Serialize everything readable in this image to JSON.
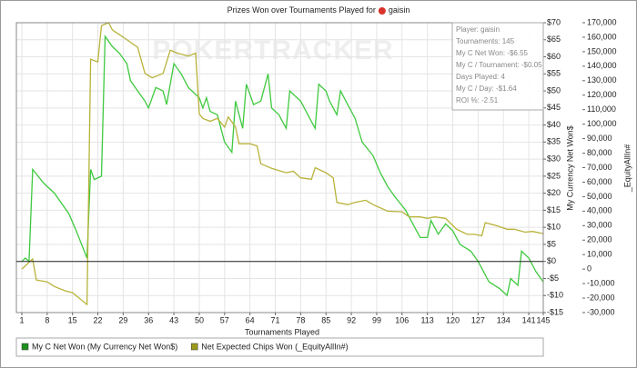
{
  "chart_data": {
    "type": "line",
    "title": "Prizes Won over Tournaments Played for",
    "title_player": "gaisin",
    "watermark": "POKERTRACKER",
    "x_label": "Tournaments Played",
    "y_label": "My Currency Net Won$",
    "y2_label": "_EquityAllIn#",
    "xlim": [
      -0.5,
      145
    ],
    "xticks": [
      1,
      8,
      15,
      22,
      29,
      36,
      43,
      50,
      57,
      64,
      71,
      78,
      85,
      92,
      99,
      106,
      113,
      120,
      127,
      134,
      141,
      145
    ],
    "ylim": [
      -15,
      70
    ],
    "yticks": [
      {
        "value": -15,
        "label": "-$15"
      },
      {
        "value": -10,
        "label": "-$10"
      },
      {
        "value": -5,
        "label": "-$5"
      },
      {
        "value": 0,
        "label": "$0"
      },
      {
        "value": 5,
        "label": "$5"
      },
      {
        "value": 10,
        "label": "$10"
      },
      {
        "value": 15,
        "label": "$15"
      },
      {
        "value": 20,
        "label": "$20"
      },
      {
        "value": 25,
        "label": "$25"
      },
      {
        "value": 30,
        "label": "$30"
      },
      {
        "value": 35,
        "label": "$35"
      },
      {
        "value": 40,
        "label": "$40"
      },
      {
        "value": 45,
        "label": "$45"
      },
      {
        "value": 50,
        "label": "$50"
      },
      {
        "value": 55,
        "label": "$55"
      },
      {
        "value": 60,
        "label": "$60"
      },
      {
        "value": 65,
        "label": "$65"
      },
      {
        "value": 70,
        "label": "$70"
      }
    ],
    "y2lim": [
      -30000,
      170000
    ],
    "y2ticks": [
      {
        "value": -30000,
        "label": "-30,000"
      },
      {
        "value": -20000,
        "label": "-20,000"
      },
      {
        "value": -10000,
        "label": "-10,000"
      },
      0,
      {
        "value": 10000,
        "label": "10,000"
      },
      {
        "value": 20000,
        "label": "20,000"
      },
      {
        "value": 30000,
        "label": "30,000"
      },
      {
        "value": 40000,
        "label": "40,000"
      },
      {
        "value": 50000,
        "label": "50,000"
      },
      {
        "value": 60000,
        "label": "60,000"
      },
      {
        "value": 70000,
        "label": "70,000"
      },
      {
        "value": 80000,
        "label": "80,000"
      },
      {
        "value": 90000,
        "label": "90,000"
      },
      {
        "value": 100000,
        "label": "100,000"
      },
      {
        "value": 110000,
        "label": "110,000"
      },
      {
        "value": 120000,
        "label": "120,000"
      },
      {
        "value": 130000,
        "label": "130,000"
      },
      {
        "value": 140000,
        "label": "140,000"
      },
      {
        "value": 150000,
        "label": "150,000"
      },
      {
        "value": 160000,
        "label": "160,000"
      },
      {
        "value": 170000,
        "label": "170,000"
      }
    ],
    "grid": true,
    "series": [
      {
        "name": "My C Net Won (My Currency Net Won$)",
        "color": "#3fc93f",
        "legend_color": "#1f8f1f",
        "axis": "y",
        "x": [
          1,
          2,
          3,
          4,
          7,
          10,
          14,
          16,
          19,
          20,
          21,
          23,
          24,
          26,
          28,
          30,
          31,
          33,
          35,
          36,
          38,
          40,
          41,
          43,
          45,
          47,
          50,
          51,
          52,
          53,
          55,
          56,
          57,
          59,
          60,
          62,
          63,
          65,
          67,
          69,
          70,
          72,
          74,
          75,
          78,
          80,
          82,
          83,
          85,
          86,
          88,
          89,
          91,
          93,
          95,
          98,
          100,
          102,
          104,
          107,
          109,
          111,
          113,
          114,
          116,
          118,
          120,
          122,
          125,
          127,
          128,
          130,
          133,
          135,
          136,
          138,
          139,
          141,
          143,
          145
        ],
        "values": [
          0,
          1,
          0,
          27,
          23,
          20,
          14,
          9,
          1,
          27,
          24,
          25,
          66,
          63,
          61,
          58,
          53,
          50,
          47,
          45,
          51,
          50,
          46,
          58,
          55,
          51,
          48,
          45,
          48,
          44,
          43,
          39,
          35,
          32,
          47,
          39,
          52,
          46,
          47,
          55,
          45,
          43,
          39,
          50,
          47,
          43,
          39,
          52,
          50,
          47,
          43,
          50,
          46,
          42,
          35,
          31,
          26,
          22,
          19,
          15,
          11,
          7,
          7,
          12,
          8,
          11,
          9,
          5,
          3,
          0,
          -2,
          -6,
          -8,
          -10,
          -5,
          -7,
          3,
          1,
          -3,
          -6
        ]
      },
      {
        "name": "Net Expected Chips Won (_EquityAllIn#)",
        "color": "#b8b23a",
        "legend_color": "#9c9a1c",
        "axis": "y2",
        "x": [
          1,
          4,
          5,
          8,
          10,
          13,
          15,
          19,
          20,
          22,
          23,
          25,
          26,
          29,
          33,
          35,
          37,
          40,
          42,
          44,
          47,
          49,
          50,
          51,
          53,
          55,
          57,
          58,
          60,
          61,
          64,
          66,
          67,
          70,
          74,
          76,
          78,
          81,
          82,
          85,
          87,
          88,
          91,
          93,
          96,
          98,
          102,
          106,
          108,
          111,
          113,
          115,
          118,
          121,
          124,
          126,
          128,
          129,
          132,
          135,
          137,
          140,
          142,
          145
        ],
        "values": [
          0,
          7000,
          -7500,
          -8800,
          -12000,
          -15000,
          -16300,
          -24500,
          144800,
          143000,
          168000,
          170000,
          165000,
          160000,
          153000,
          135000,
          132000,
          135000,
          151000,
          149000,
          147000,
          149000,
          107000,
          104000,
          102000,
          104000,
          98000,
          105000,
          98000,
          86500,
          86500,
          85000,
          72700,
          69500,
          66500,
          67500,
          63000,
          62000,
          70000,
          66500,
          63000,
          46000,
          44500,
          46000,
          47500,
          44500,
          40000,
          39500,
          36000,
          36000,
          35000,
          36000,
          35000,
          27600,
          24000,
          24000,
          23000,
          32000,
          30000,
          27500,
          27500,
          25500,
          26000,
          24500
        ]
      }
    ],
    "legend_position": "bottom",
    "info_box": [
      "Player: gaisin",
      "Tournaments: 145",
      "My C Net Won: -$6.55",
      "My C / Tournament: -$0.05",
      "Days Played: 4",
      "My C / Day: -$1.64",
      "ROI %: -2.51"
    ]
  }
}
